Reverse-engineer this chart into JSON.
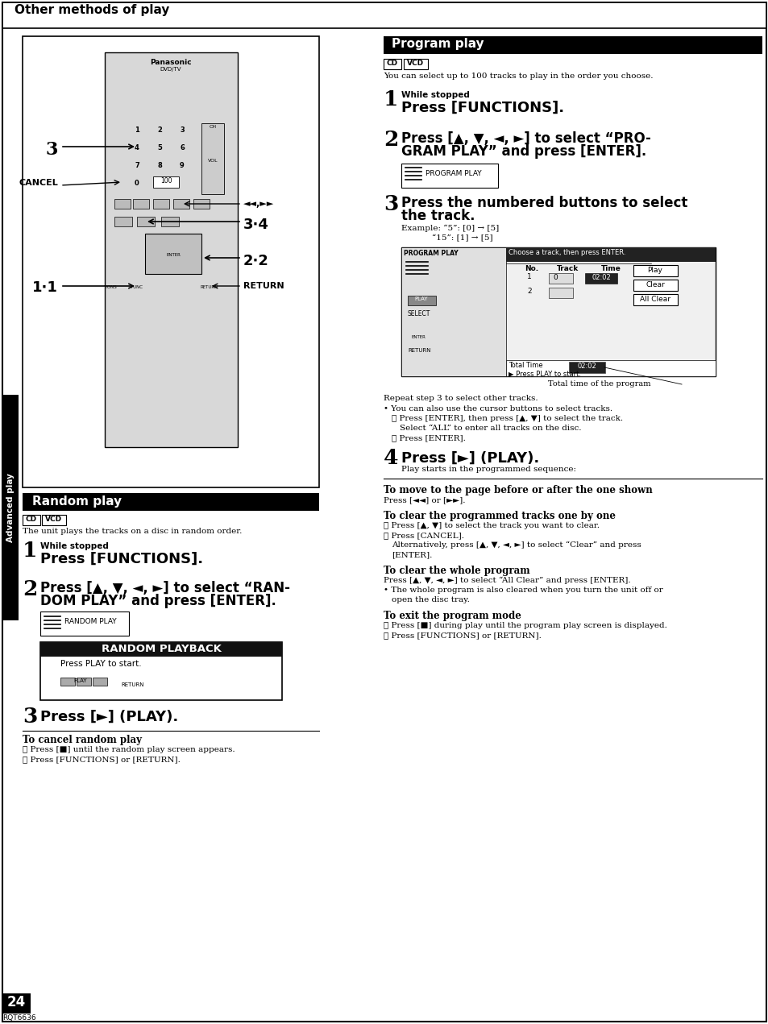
{
  "page_bg": "#ffffff",
  "header_text": "Other methods of play",
  "random_play_title": "Random play",
  "program_play_title": "Program play",
  "page_number": "24",
  "page_code": "RQT6636"
}
